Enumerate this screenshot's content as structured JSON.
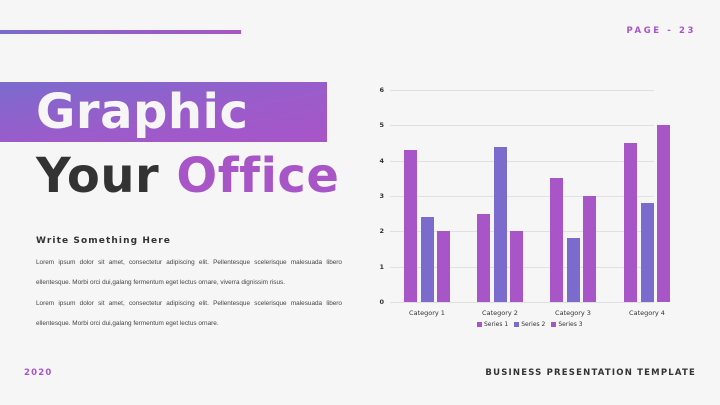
{
  "header": {
    "page_label": "PAGE - 23"
  },
  "title": {
    "line1": "Graphic",
    "line2_prefix": "Your ",
    "line2_accent": "Office"
  },
  "content": {
    "subheading": "Write Something Here",
    "paragraphs": [
      "Lorem ipsum dolor sit amet, consectetur adipiscing elit. Pellentesque scelerisque malesuada libero ellentesque. Morbi orci dui,galang fermentum eget lectus ornare, viverra dignissim risus.",
      "Lorem ipsum dolor sit amet, consectetur adipiscing elit. Pellentesque scelerisque malesuada libero ellentesque. Morbi orci dui,galang fermentum eget lectus ornare."
    ]
  },
  "footer": {
    "year": "2020",
    "title": "BUSINESS PRESENTATION TEMPLATE"
  },
  "colors": {
    "accent_purple": "#a855c8",
    "accent_violet": "#7a6bcc",
    "text_dark": "#333333",
    "background": "#f6f6f6"
  },
  "chart_data": {
    "type": "bar",
    "title": "",
    "xlabel": "",
    "ylabel": "",
    "categories": [
      "Category 1",
      "Category 2",
      "Category 3",
      "Category 4"
    ],
    "series": [
      {
        "name": "Series 1",
        "color": "#a855c8",
        "values": [
          4.3,
          2.5,
          3.5,
          4.5
        ]
      },
      {
        "name": "Series 2",
        "color": "#7a6bcc",
        "values": [
          2.4,
          4.4,
          1.8,
          2.8
        ]
      },
      {
        "name": "Series 3",
        "color": "#a855c8",
        "values": [
          2.0,
          2.0,
          3.0,
          5.0
        ]
      }
    ],
    "yticks": [
      "0",
      "1",
      "2",
      "3",
      "4",
      "5",
      "6"
    ],
    "ylim": [
      0,
      6
    ],
    "grid": true,
    "legend_position": "bottom"
  }
}
